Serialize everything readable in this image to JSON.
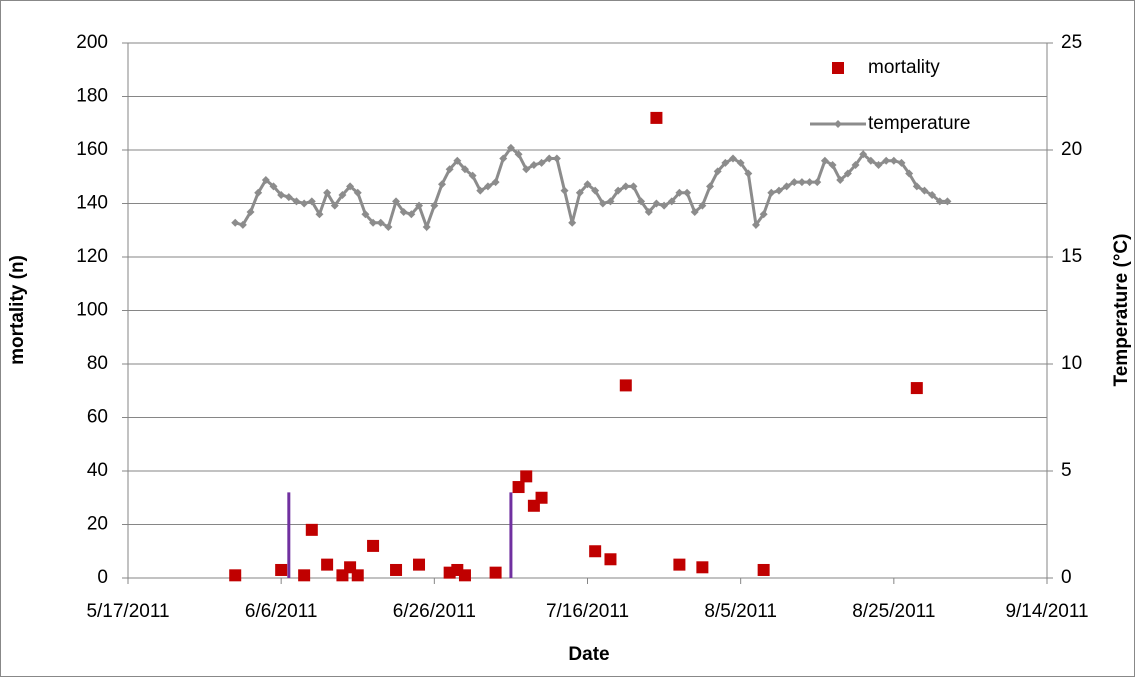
{
  "chart_data": {
    "type": "scatter-line",
    "xlabel": "Date",
    "ylabel": "mortality (n)",
    "y2label": "Temperature (°C)",
    "xlim": [
      "5/17/2011",
      "9/14/2011"
    ],
    "xticks": [
      "5/17/2011",
      "6/6/2011",
      "6/26/2011",
      "7/16/2011",
      "8/5/2011",
      "8/25/2011",
      "9/14/2011"
    ],
    "ylim": [
      0,
      200
    ],
    "yticks": [
      0,
      20,
      40,
      60,
      80,
      100,
      120,
      140,
      160,
      180,
      200
    ],
    "y2lim": [
      0,
      25
    ],
    "y2ticks": [
      0,
      5,
      10,
      15,
      20,
      25
    ],
    "grid": true,
    "legend": "top-right",
    "series": [
      {
        "name": "mortality",
        "type": "scatter",
        "color": "#c00000",
        "x": [
          "5/31/2011",
          "6/6/2011",
          "6/9/2011",
          "6/10/2011",
          "6/12/2011",
          "6/14/2011",
          "6/15/2011",
          "6/16/2011",
          "6/18/2011",
          "6/21/2011",
          "6/24/2011",
          "6/28/2011",
          "6/29/2011",
          "6/30/2011",
          "7/4/2011",
          "7/7/2011",
          "7/8/2011",
          "7/9/2011",
          "7/10/2011",
          "7/17/2011",
          "7/19/2011",
          "7/21/2011",
          "7/25/2011",
          "7/28/2011",
          "7/31/2011",
          "8/8/2011",
          "8/28/2011"
        ],
        "values": [
          1,
          3,
          1,
          18,
          5,
          1,
          4,
          1,
          12,
          3,
          5,
          2,
          3,
          1,
          2,
          34,
          38,
          27,
          30,
          10,
          7,
          72,
          172,
          5,
          4,
          3,
          71
        ]
      },
      {
        "name": "temperature",
        "type": "line",
        "axis": "y2",
        "color": "#8c8c8c",
        "x": [
          "5/31/2011",
          "6/1/2011",
          "6/2/2011",
          "6/3/2011",
          "6/4/2011",
          "6/5/2011",
          "6/6/2011",
          "6/7/2011",
          "6/8/2011",
          "6/9/2011",
          "6/10/2011",
          "6/11/2011",
          "6/12/2011",
          "6/13/2011",
          "6/14/2011",
          "6/15/2011",
          "6/16/2011",
          "6/17/2011",
          "6/18/2011",
          "6/19/2011",
          "6/20/2011",
          "6/21/2011",
          "6/22/2011",
          "6/23/2011",
          "6/24/2011",
          "6/25/2011",
          "6/26/2011",
          "6/27/2011",
          "6/28/2011",
          "6/29/2011",
          "6/30/2011",
          "7/1/2011",
          "7/2/2011",
          "7/3/2011",
          "7/4/2011",
          "7/5/2011",
          "7/6/2011",
          "7/7/2011",
          "7/8/2011",
          "7/9/2011",
          "7/10/2011",
          "7/11/2011",
          "7/12/2011",
          "7/13/2011",
          "7/14/2011",
          "7/15/2011",
          "7/16/2011",
          "7/17/2011",
          "7/18/2011",
          "7/19/2011",
          "7/20/2011",
          "7/21/2011",
          "7/22/2011",
          "7/23/2011",
          "7/24/2011",
          "7/25/2011",
          "7/26/2011",
          "7/27/2011",
          "7/28/2011",
          "7/29/2011",
          "7/30/2011",
          "7/31/2011",
          "8/1/2011",
          "8/2/2011",
          "8/3/2011",
          "8/4/2011",
          "8/5/2011",
          "8/6/2011",
          "8/7/2011",
          "8/8/2011",
          "8/9/2011",
          "8/10/2011",
          "8/11/2011",
          "8/12/2011",
          "8/13/2011",
          "8/14/2011",
          "8/15/2011",
          "8/16/2011",
          "8/17/2011",
          "8/18/2011",
          "8/19/2011",
          "8/20/2011",
          "8/21/2011",
          "8/22/2011",
          "8/23/2011",
          "8/24/2011",
          "8/25/2011",
          "8/26/2011",
          "8/27/2011",
          "8/28/2011",
          "8/29/2011",
          "8/30/2011",
          "8/31/2011",
          "9/1/2011"
        ],
        "values": [
          16.6,
          16.5,
          17.1,
          18,
          18.6,
          18.3,
          17.9,
          17.8,
          17.6,
          17.5,
          17.6,
          17,
          18,
          17.4,
          17.9,
          18.3,
          18,
          17,
          16.6,
          16.6,
          16.4,
          17.6,
          17.1,
          17,
          17.4,
          16.4,
          17.4,
          18.4,
          19.1,
          19.5,
          19.1,
          18.8,
          18.1,
          18.3,
          18.5,
          19.6,
          20.1,
          19.8,
          19.1,
          19.3,
          19.4,
          19.6,
          19.6,
          18.1,
          16.6,
          18,
          18.4,
          18.1,
          17.5,
          17.6,
          18.1,
          18.3,
          18.3,
          17.6,
          17.1,
          17.5,
          17.4,
          17.6,
          18,
          18,
          17.1,
          17.4,
          18.3,
          19,
          19.4,
          19.6,
          19.4,
          18.9,
          16.5,
          17,
          18,
          18.1,
          18.3,
          18.5,
          18.5,
          18.5,
          18.5,
          19.5,
          19.3,
          18.6,
          18.9,
          19.3,
          19.8,
          19.5,
          19.3,
          19.5,
          19.5,
          19.4,
          18.9,
          18.3,
          18.1,
          17.9,
          17.6,
          17.6
        ]
      }
    ],
    "vlines": [
      {
        "x": "6/7/2011",
        "height": 32,
        "color": "#7030a0"
      },
      {
        "x": "7/6/2011",
        "height": 32,
        "color": "#7030a0"
      }
    ]
  }
}
